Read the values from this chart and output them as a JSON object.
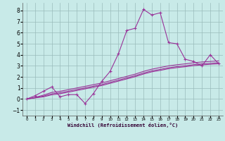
{
  "xlabel": "Windchill (Refroidissement éolien,°C)",
  "xlim": [
    -0.5,
    23.5
  ],
  "ylim": [
    -1.5,
    8.7
  ],
  "yticks": [
    -1,
    0,
    1,
    2,
    3,
    4,
    5,
    6,
    7,
    8
  ],
  "xticks": [
    0,
    1,
    2,
    3,
    4,
    5,
    6,
    7,
    8,
    9,
    10,
    11,
    12,
    13,
    14,
    15,
    16,
    17,
    18,
    19,
    20,
    21,
    22,
    23
  ],
  "bg_color": "#c8eae8",
  "grid_color": "#99bbbb",
  "line_color": "#993399",
  "main_x": [
    0,
    1,
    2,
    3,
    4,
    5,
    6,
    7,
    8,
    9,
    10,
    11,
    12,
    13,
    14,
    15,
    16,
    17,
    18,
    19,
    20,
    21,
    22,
    23
  ],
  "main_y": [
    0.0,
    0.3,
    0.7,
    1.1,
    0.2,
    0.4,
    0.4,
    -0.4,
    0.5,
    1.6,
    2.5,
    4.1,
    6.2,
    6.4,
    8.1,
    7.6,
    7.8,
    5.1,
    5.0,
    3.6,
    3.4,
    3.0,
    4.0,
    3.2
  ],
  "line2_y": [
    0.0,
    0.15,
    0.35,
    0.6,
    0.7,
    0.85,
    1.0,
    1.15,
    1.3,
    1.45,
    1.65,
    1.85,
    2.05,
    2.25,
    2.5,
    2.7,
    2.85,
    3.0,
    3.1,
    3.18,
    3.28,
    3.35,
    3.4,
    3.45
  ],
  "line3_y": [
    0.0,
    0.12,
    0.26,
    0.47,
    0.57,
    0.71,
    0.86,
    1.01,
    1.16,
    1.31,
    1.51,
    1.71,
    1.91,
    2.11,
    2.35,
    2.55,
    2.68,
    2.83,
    2.93,
    3.01,
    3.11,
    3.18,
    3.23,
    3.28
  ],
  "line4_y": [
    0.0,
    0.1,
    0.2,
    0.38,
    0.48,
    0.62,
    0.77,
    0.92,
    1.07,
    1.22,
    1.42,
    1.62,
    1.82,
    2.02,
    2.26,
    2.46,
    2.59,
    2.74,
    2.84,
    2.92,
    3.02,
    3.09,
    3.14,
    3.19
  ]
}
